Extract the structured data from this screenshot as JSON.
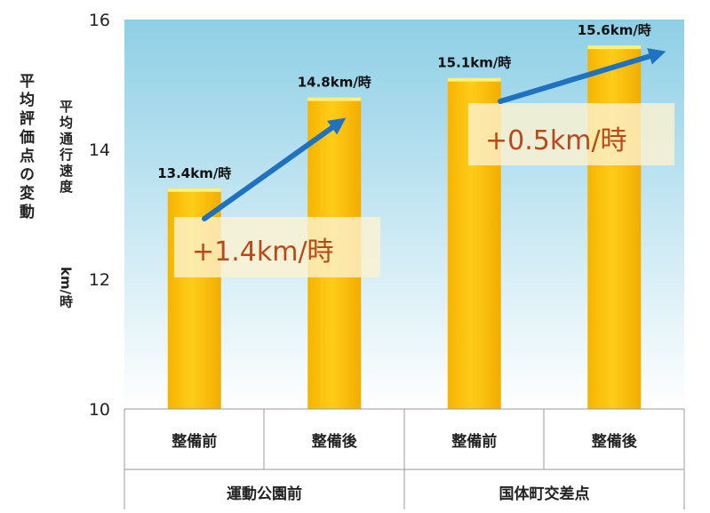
{
  "chart_data": {
    "type": "bar",
    "ylabel_outer": "平均評価点の変動",
    "ylabel_inner_main": "平均通行速度",
    "ylabel_inner_unit": "km/時",
    "ylim": [
      10,
      16
    ],
    "yticks": [
      "10",
      "12",
      "14",
      "16"
    ],
    "grid": false,
    "categories": [
      "整備前",
      "整備後",
      "整備前",
      "整備後"
    ],
    "groups": [
      "運動公園前",
      "国体町交差点"
    ],
    "values": [
      13.4,
      14.8,
      15.1,
      15.6
    ],
    "data_labels": [
      "13.4km/時",
      "14.8km/時",
      "15.1km/時",
      "15.6km/時"
    ],
    "annotations": [
      "+1.4km/時",
      "+0.5km/時"
    ],
    "colors": {
      "bar": "#ffc20e",
      "bar_top": "#fff07a",
      "plot_bg_top": "#8ecfe6",
      "plot_bg_bottom": "#ffffff",
      "arrow": "#1f72c0",
      "annotation_text": "#b84a1a",
      "annotation_box": "#fdf2cf"
    }
  }
}
